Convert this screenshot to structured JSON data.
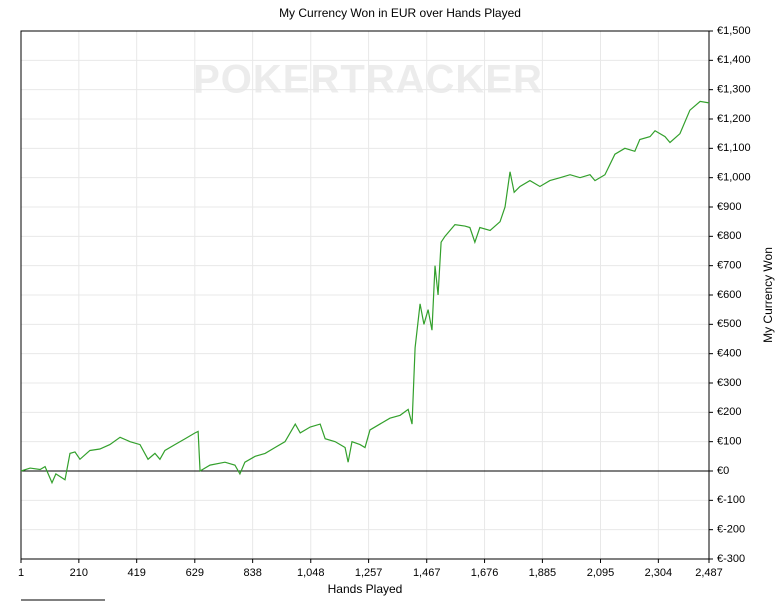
{
  "chart_data": {
    "type": "line",
    "title": "My Currency Won in EUR over Hands Played",
    "watermark": "POKERTRACKER",
    "xlabel": "Hands Played",
    "ylabel": "My Currency Won",
    "x": [
      1,
      34,
      70,
      88,
      113,
      127,
      160,
      178,
      196,
      214,
      250,
      286,
      322,
      359,
      395,
      431,
      460,
      485,
      503,
      521,
      557,
      594,
      630,
      641,
      648,
      684,
      738,
      774,
      792,
      810,
      847,
      883,
      919,
      955,
      992,
      1010,
      1046,
      1082,
      1100,
      1136,
      1172,
      1183,
      1197,
      1226,
      1244,
      1262,
      1298,
      1334,
      1371,
      1400,
      1414,
      1425,
      1443,
      1457,
      1472,
      1486,
      1497,
      1508,
      1519,
      1533,
      1551,
      1569,
      1605,
      1623,
      1641,
      1659,
      1696,
      1732,
      1750,
      1768,
      1783,
      1804,
      1840,
      1876,
      1912,
      1949,
      1985,
      2021,
      2057,
      2075,
      2111,
      2147,
      2183,
      2219,
      2237,
      2274,
      2292,
      2328,
      2346,
      2382,
      2418,
      2455,
      2487
    ],
    "series": [
      {
        "name": "My Currency Won",
        "color": "#33a02c",
        "values": [
          0,
          10,
          5,
          15,
          -40,
          -10,
          -30,
          60,
          65,
          40,
          70,
          75,
          90,
          115,
          100,
          90,
          40,
          60,
          40,
          70,
          90,
          110,
          130,
          135,
          0,
          20,
          30,
          20,
          -10,
          30,
          50,
          60,
          80,
          100,
          160,
          130,
          150,
          160,
          110,
          100,
          80,
          30,
          100,
          90,
          80,
          140,
          160,
          180,
          190,
          210,
          160,
          420,
          570,
          500,
          550,
          480,
          700,
          600,
          780,
          800,
          820,
          840,
          835,
          830,
          780,
          830,
          820,
          850,
          900,
          1020,
          950,
          970,
          990,
          970,
          990,
          1000,
          1010,
          1000,
          1010,
          990,
          1010,
          1080,
          1100,
          1090,
          1130,
          1140,
          1160,
          1140,
          1120,
          1150,
          1230,
          1260,
          1255
        ]
      }
    ],
    "xlim": [
      1,
      2487
    ],
    "xticks": [
      1,
      210,
      419,
      629,
      838,
      {
        "value": 1048,
        "label": "1,048"
      },
      {
        "value": 1257,
        "label": "1,257"
      },
      {
        "value": 1467,
        "label": "1,467"
      },
      {
        "value": 1676,
        "label": "1,676"
      },
      {
        "value": 1885,
        "label": "1,885"
      },
      {
        "value": 2095,
        "label": "2,095"
      },
      {
        "value": 2304,
        "label": "2,304"
      },
      {
        "value": 2487,
        "label": "2,487"
      }
    ],
    "ylim": [
      -300,
      1500
    ],
    "yticks": [
      {
        "value": -300,
        "label": "€-300"
      },
      {
        "value": -200,
        "label": "€-200"
      },
      {
        "value": -100,
        "label": "€-100"
      },
      {
        "value": 0,
        "label": "€0"
      },
      {
        "value": 100,
        "label": "€100"
      },
      {
        "value": 200,
        "label": "€200"
      },
      {
        "value": 300,
        "label": "€300"
      },
      {
        "value": 400,
        "label": "€400"
      },
      {
        "value": 500,
        "label": "€500"
      },
      {
        "value": 600,
        "label": "€600"
      },
      {
        "value": 700,
        "label": "€700"
      },
      {
        "value": 800,
        "label": "€800"
      },
      {
        "value": 900,
        "label": "€900"
      },
      {
        "value": 1000,
        "label": "€1,000"
      },
      {
        "value": 1100,
        "label": "€1,100"
      },
      {
        "value": 1200,
        "label": "€1,200"
      },
      {
        "value": 1300,
        "label": "€1,300"
      },
      {
        "value": 1400,
        "label": "€1,400"
      },
      {
        "value": 1500,
        "label": "€1,500"
      }
    ],
    "grid": true
  }
}
